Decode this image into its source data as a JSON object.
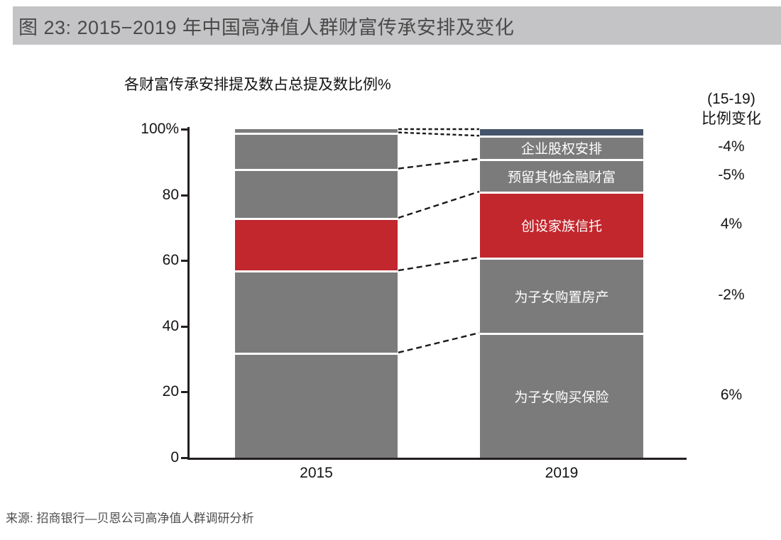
{
  "header": {
    "title": "图 23:  2015−2019 年中国高净值人群财富传承安排及变化"
  },
  "chart": {
    "subtitle": "各财富传承安排提及数占总提及数比例%",
    "change_header_line1": "(15-19)",
    "change_header_line2": "比例变化",
    "y_ticks": [
      {
        "label": "100%",
        "value": 100
      },
      {
        "label": "80",
        "value": 80
      },
      {
        "label": "60",
        "value": 60
      },
      {
        "label": "40",
        "value": 40
      },
      {
        "label": "20",
        "value": 20
      },
      {
        "label": "0",
        "value": 0
      }
    ]
  },
  "chart_data": {
    "type": "bar",
    "stacked": true,
    "title": "各财富传承安排提及数占总提及数比例%",
    "categories": [
      "2015",
      "2019"
    ],
    "ylim": [
      0,
      100
    ],
    "unit": "%",
    "change_column_title": "(15-19) 比例变化",
    "segments_bottom_up": [
      {
        "name": "为子女购买保险",
        "values": [
          32,
          38
        ],
        "change": "6%",
        "colors": [
          "#7b7b7b",
          "#7b7b7b"
        ]
      },
      {
        "name": "为子女购置房产",
        "values": [
          25,
          23
        ],
        "change": "-2%",
        "colors": [
          "#7b7b7b",
          "#7b7b7b"
        ]
      },
      {
        "name": "创设家族信托",
        "values": [
          16,
          20
        ],
        "change": "4%",
        "colors": [
          "#c1272d",
          "#c1272d"
        ]
      },
      {
        "name": "预留其他金融财富",
        "values": [
          15,
          10
        ],
        "change": "-5%",
        "colors": [
          "#7b7b7b",
          "#7b7b7b"
        ]
      },
      {
        "name": "企业股权安排",
        "values": [
          11,
          7
        ],
        "change": "-4%",
        "colors": [
          "#7b7b7b",
          "#7b7b7b"
        ]
      },
      {
        "name": "",
        "values": [
          1,
          2
        ],
        "change": "",
        "colors": [
          "#7b7b7b",
          "#44546a"
        ]
      }
    ],
    "legend_position": "labels-inside-2019-bar",
    "grid": false
  },
  "source": "来源: 招商银行—贝恩公司高净值人群调研分析",
  "colors": {
    "bar_gray": "#7b7b7b",
    "bar_red": "#c1272d",
    "bar_top_slate": "#44546a",
    "header_bg": "#c4c4c6",
    "axis": "#231f20",
    "text_dark": "#141414",
    "segment_gap": "#ffffff"
  }
}
